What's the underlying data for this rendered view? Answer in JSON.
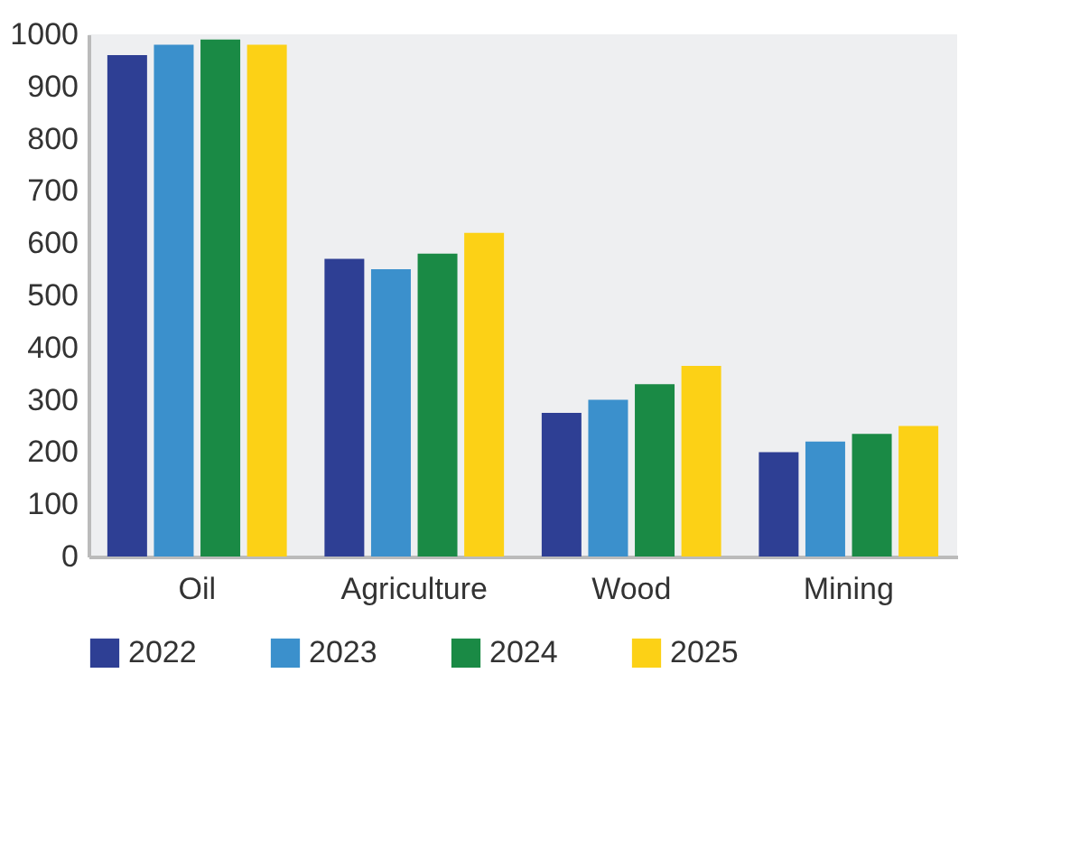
{
  "chart_data": {
    "type": "bar",
    "categories": [
      "Oil",
      "Agriculture",
      "Wood",
      "Mining"
    ],
    "series": [
      {
        "name": "2022",
        "color": "#2e3f94",
        "values": [
          960,
          570,
          275,
          200
        ]
      },
      {
        "name": "2023",
        "color": "#3b90cc",
        "values": [
          980,
          550,
          300,
          220
        ]
      },
      {
        "name": "2024",
        "color": "#1a8a45",
        "values": [
          990,
          580,
          330,
          235
        ]
      },
      {
        "name": "2025",
        "color": "#fcd116",
        "values": [
          980,
          620,
          365,
          250
        ]
      }
    ],
    "ylim": [
      0,
      1000
    ],
    "yticks": [
      0,
      100,
      200,
      300,
      400,
      500,
      600,
      700,
      800,
      900,
      1000
    ],
    "grid": false,
    "legend": "bottom"
  }
}
